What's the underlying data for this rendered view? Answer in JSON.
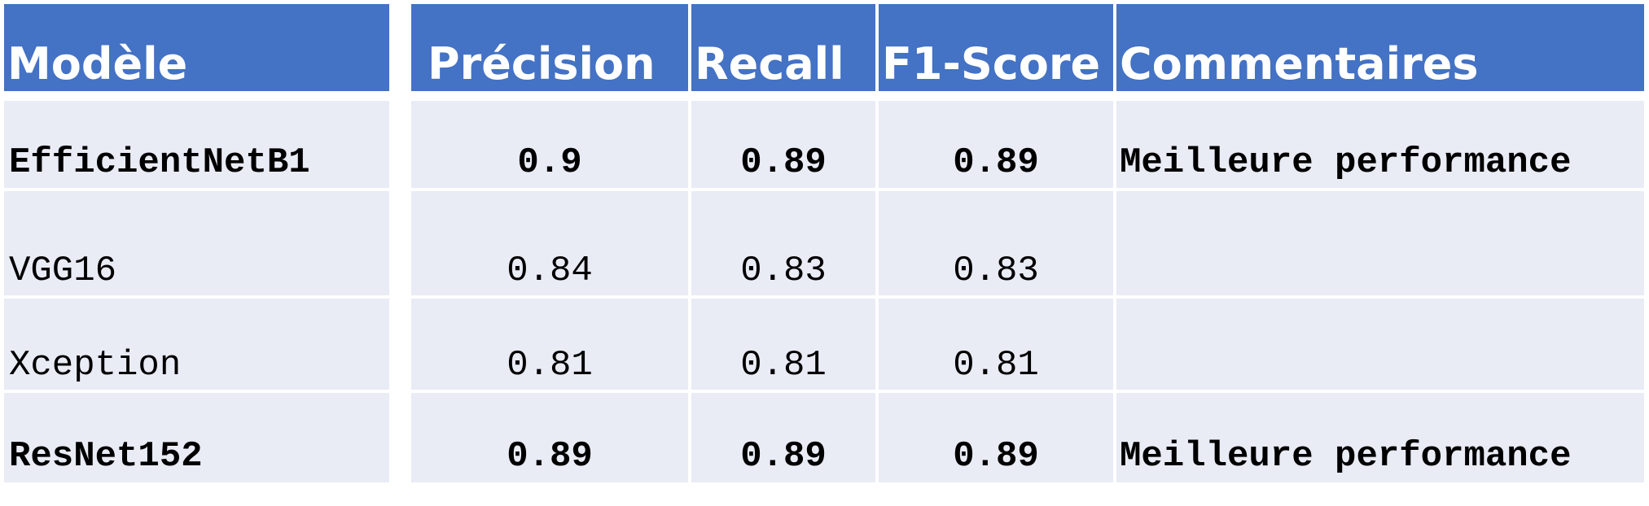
{
  "table": {
    "headers": [
      "Modèle",
      "Précision",
      "Recall",
      "F1-Score",
      "Commentaires"
    ],
    "rows": [
      {
        "model": "EfficientNetB1",
        "precision": "0.9",
        "recall": "0.89",
        "f1": "0.89",
        "comment": "Meilleure performance",
        "bold": true
      },
      {
        "model": "VGG16",
        "precision": "0.84",
        "recall": "0.83",
        "f1": "0.83",
        "comment": "",
        "bold": false
      },
      {
        "model": "Xception",
        "precision": "0.81",
        "recall": "0.81",
        "f1": "0.81",
        "comment": "",
        "bold": false
      },
      {
        "model": "ResNet152",
        "precision": "0.89",
        "recall": "0.89",
        "f1": "0.89",
        "comment": "Meilleure performance",
        "bold": true
      }
    ]
  },
  "colors": {
    "header_bg": "#4472c4",
    "header_text": "#ffffff",
    "row_bg": "#e9ebf5",
    "row_text": "#000000"
  }
}
